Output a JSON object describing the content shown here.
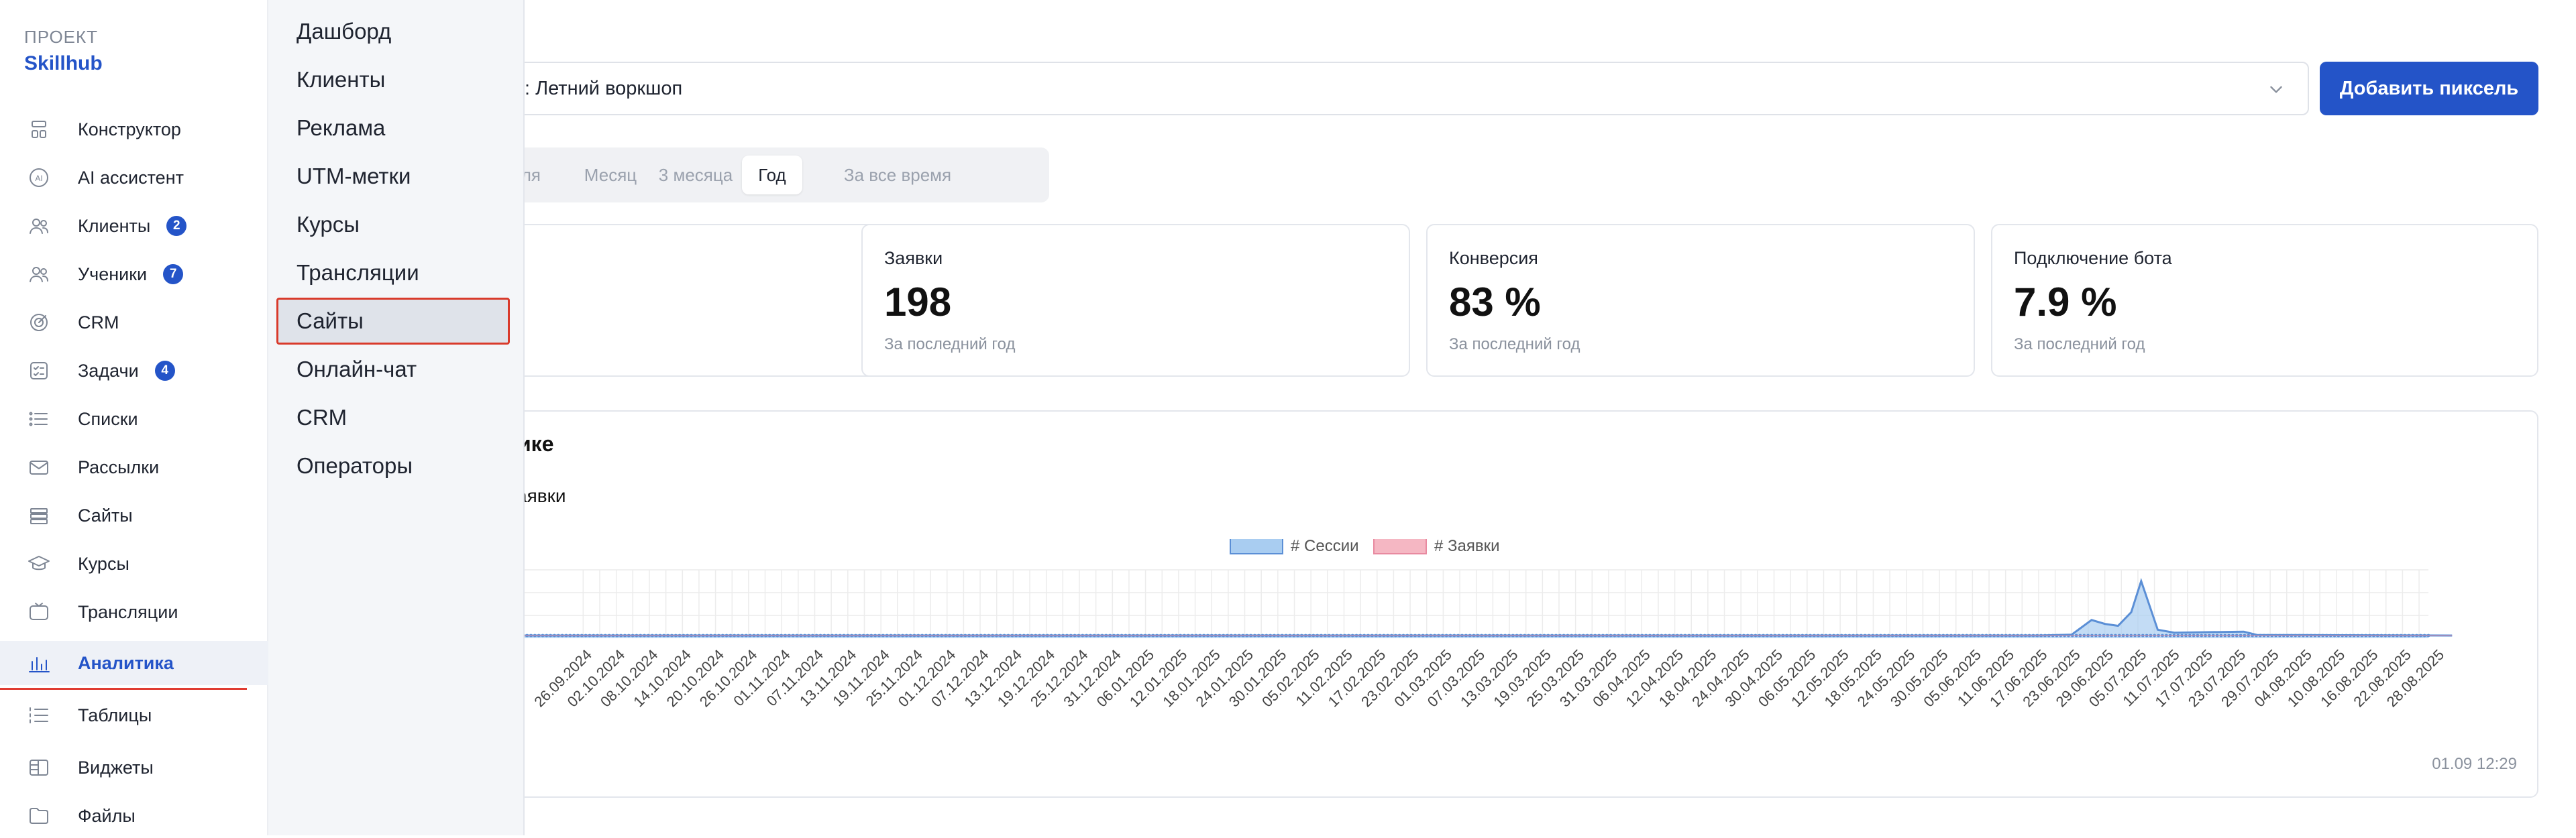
{
  "project": {
    "label": "ПРОЕКТ",
    "name": "Skillhub"
  },
  "sidebar": {
    "items": [
      {
        "label": "Конструктор",
        "icon": "constructor-icon"
      },
      {
        "label": "AI ассистент",
        "icon": "ai-icon"
      },
      {
        "label": "Клиенты",
        "icon": "users-icon",
        "badge": "2"
      },
      {
        "label": "Ученики",
        "icon": "students-icon",
        "badge": "7"
      },
      {
        "label": "CRM",
        "icon": "crm-icon"
      },
      {
        "label": "Задачи",
        "icon": "tasks-icon",
        "badge": "4"
      },
      {
        "label": "Списки",
        "icon": "list-icon"
      },
      {
        "label": "Рассылки",
        "icon": "mail-icon"
      },
      {
        "label": "Сайты",
        "icon": "sites-icon"
      },
      {
        "label": "Курсы",
        "icon": "courses-icon"
      },
      {
        "label": "Трансляции",
        "icon": "broadcast-icon"
      },
      {
        "label": "Аналитика",
        "icon": "analytics-icon",
        "active": true
      },
      {
        "label": "Таблицы",
        "icon": "tables-icon"
      },
      {
        "label": "Виджеты",
        "icon": "widgets-icon"
      },
      {
        "label": "Файлы",
        "icon": "files-icon"
      }
    ]
  },
  "submenu": {
    "items": [
      "Дашборд",
      "Клиенты",
      "Реклама",
      "UTM-метки",
      "Курсы",
      "Трансляции",
      "Сайты",
      "Онлайн-чат",
      "CRM",
      "Операторы"
    ],
    "selected_index": 6
  },
  "main": {
    "page_select_value": ": Летний воркшоп",
    "add_pixel_label": "Добавить пиксель",
    "periods": [
      "деля",
      "Месяц",
      "3 месяца",
      "Год",
      "За все время"
    ],
    "period_active_index": 3,
    "cards": [
      {
        "title": "",
        "value": "",
        "sub": ""
      },
      {
        "title": "Заявки",
        "value": "198",
        "sub": "За последний год"
      },
      {
        "title": "Конверсия",
        "value": "83 %",
        "sub": "За последний год"
      },
      {
        "title": "Подключение бота",
        "value": "7.9 %",
        "sub": "За последний год"
      }
    ],
    "chart_title": "фике",
    "chart_subtitle": "аявки",
    "chart_stamp": "01.09 12:29"
  },
  "colors": {
    "accent": "#2454c8",
    "series_sessions": "#a9cdf1",
    "series_requests": "#f5b7c3",
    "line_sessions": "#5b8fd6",
    "highlight": "#d93a2b"
  },
  "chart_data": {
    "type": "line",
    "legend": [
      "# Сессии",
      "# Заявки"
    ],
    "legend_position": "top-center",
    "grid": true,
    "x_tick_labels": [
      "26.09.2024",
      "02.10.2024",
      "08.10.2024",
      "14.10.2024",
      "20.10.2024",
      "26.10.2024",
      "01.11.2024",
      "07.11.2024",
      "13.11.2024",
      "19.11.2024",
      "25.11.2024",
      "01.12.2024",
      "07.12.2024",
      "13.12.2024",
      "19.12.2024",
      "25.12.2024",
      "31.12.2024",
      "06.01.2025",
      "12.01.2025",
      "18.01.2025",
      "24.01.2025",
      "30.01.2025",
      "05.02.2025",
      "11.02.2025",
      "17.02.2025",
      "23.02.2025",
      "01.03.2025",
      "07.03.2025",
      "13.03.2025",
      "19.03.2025",
      "25.03.2025",
      "31.03.2025",
      "06.04.2025",
      "12.04.2025",
      "18.04.2025",
      "24.04.2025",
      "30.04.2025",
      "06.05.2025",
      "12.05.2025",
      "18.05.2025",
      "24.05.2025",
      "30.05.2025",
      "05.06.2025",
      "11.06.2025",
      "17.06.2025",
      "23.06.2025",
      "29.06.2025",
      "05.07.2025",
      "11.07.2025",
      "17.07.2025",
      "23.07.2025",
      "29.07.2025",
      "04.08.2025",
      "10.08.2025",
      "16.08.2025",
      "22.08.2025",
      "28.08.2025"
    ],
    "series": [
      {
        "name": "# Сессии",
        "points": [
          {
            "i": 0,
            "v": 0
          },
          {
            "i": 44,
            "v": 0
          },
          {
            "i": 45,
            "v": 0.5
          },
          {
            "i": 45.6,
            "v": 8
          },
          {
            "i": 46,
            "v": 6
          },
          {
            "i": 46.4,
            "v": 5
          },
          {
            "i": 46.8,
            "v": 12
          },
          {
            "i": 47.1,
            "v": 28
          },
          {
            "i": 47.3,
            "v": 18
          },
          {
            "i": 47.6,
            "v": 3
          },
          {
            "i": 48.1,
            "v": 1.5
          },
          {
            "i": 50.2,
            "v": 2
          },
          {
            "i": 50.6,
            "v": 0.3
          },
          {
            "i": 56.5,
            "v": 0
          }
        ]
      },
      {
        "name": "# Заявки",
        "points": [
          {
            "i": 0,
            "v": 0
          },
          {
            "i": 56.5,
            "v": 0
          }
        ]
      }
    ]
  }
}
